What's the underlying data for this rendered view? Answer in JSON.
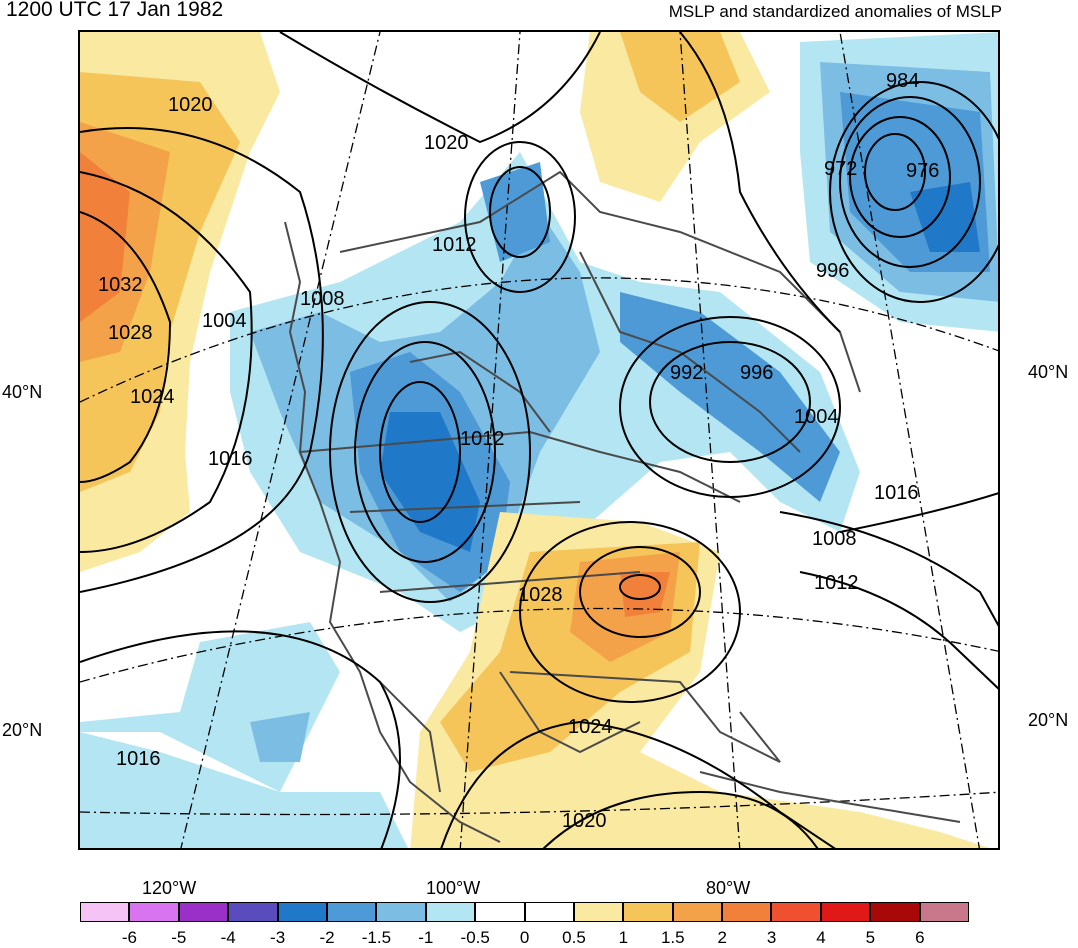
{
  "titles": {
    "left": "1200 UTC 17 Jan 1982",
    "right": "MSLP and standardized anomalies of MSLP"
  },
  "lat_labels": {
    "left_40": "40°N",
    "left_20": "20°N",
    "right_40": "40°N",
    "right_20": "20°N"
  },
  "lon_labels": {
    "w120": "120°W",
    "w100": "100°W",
    "w80": "80°W"
  },
  "isobar_labels": [
    {
      "name": "isobar-label-1020-nw",
      "text": "1020"
    },
    {
      "name": "isobar-label-1020-north",
      "text": "1020"
    },
    {
      "name": "isobar-label-1032",
      "text": "1032"
    },
    {
      "name": "isobar-label-1028-west",
      "text": "1028"
    },
    {
      "name": "isobar-label-1024-west",
      "text": "1024"
    },
    {
      "name": "isobar-label-1004-west",
      "text": "1004"
    },
    {
      "name": "isobar-label-1008-west",
      "text": "1008"
    },
    {
      "name": "isobar-label-1016-west",
      "text": "1016"
    },
    {
      "name": "isobar-label-1012-north",
      "text": "1012"
    },
    {
      "name": "isobar-label-1012-central",
      "text": "1012"
    },
    {
      "name": "isobar-label-984",
      "text": "984"
    },
    {
      "name": "isobar-label-972",
      "text": "972"
    },
    {
      "name": "isobar-label-976",
      "text": "976"
    },
    {
      "name": "isobar-label-996-ne",
      "text": "996"
    },
    {
      "name": "isobar-label-992",
      "text": "992"
    },
    {
      "name": "isobar-label-996-east",
      "text": "996"
    },
    {
      "name": "isobar-label-1004-east",
      "text": "1004"
    },
    {
      "name": "isobar-label-1016-east",
      "text": "1016"
    },
    {
      "name": "isobar-label-1008-east",
      "text": "1008"
    },
    {
      "name": "isobar-label-1012-east",
      "text": "1012"
    },
    {
      "name": "isobar-label-1028-se",
      "text": "1028"
    },
    {
      "name": "isobar-label-1024-south",
      "text": "1024"
    },
    {
      "name": "isobar-label-1020-south",
      "text": "1020"
    },
    {
      "name": "isobar-label-1016-sw",
      "text": "1016"
    }
  ],
  "colorbar": {
    "colors": [
      "#f5c3f5",
      "#d874f0",
      "#9b30c8",
      "#5a4cbd",
      "#1f78c8",
      "#4d9ad6",
      "#7cbde4",
      "#b3e6f2",
      "#ffffff",
      "#ffffff",
      "#fae9a0",
      "#f5c55a",
      "#f3a24a",
      "#f0803a",
      "#ee5030",
      "#e01818",
      "#a80808",
      "#c8788a"
    ],
    "ticks": [
      "-6",
      "-5",
      "-4",
      "-3",
      "-2",
      "-1.5",
      "-1",
      "-0.5",
      "0",
      "0.5",
      "1",
      "1.5",
      "2",
      "3",
      "4",
      "5",
      "6"
    ]
  },
  "anomaly_colors": {
    "pos_strong": "#f0803a",
    "pos_mid": "#f3a24a",
    "pos_weak": "#f5c55a",
    "pos_faint": "#fae9a0",
    "neg_faint": "#b3e6f2",
    "neg_weak": "#7cbde4",
    "neg_mid": "#4d9ad6",
    "neg_strong": "#1f78c8"
  }
}
